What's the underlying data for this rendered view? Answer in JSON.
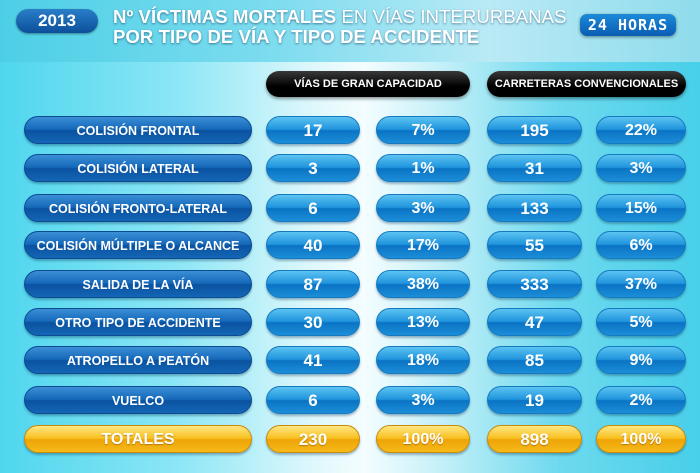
{
  "header": {
    "year": "2013",
    "title_bold_1": "Nº VÍCTIMAS MORTALES",
    "title_light": " EN VÍAS INTERURBANAS",
    "title_line2": "POR TIPO DE VÍA Y TIPO DE ACCIDENTE",
    "badge": "24 HORAS"
  },
  "colors": {
    "row_pill": "#1f93dc",
    "label_pill": "#1567b8",
    "total_pill": "#f7bf1e",
    "column_header": "#000000"
  },
  "chart_data": {
    "type": "table",
    "column_groups": [
      "VÍAS DE GRAN CAPACIDAD",
      "CARRETERAS CONVENCIONALES"
    ],
    "rows": [
      {
        "label": "COLISIÓN FRONTAL",
        "gc_num": "17",
        "gc_pct": "7%",
        "cc_num": "195",
        "cc_pct": "22%"
      },
      {
        "label": "COLISIÓN  LATERAL",
        "gc_num": "3",
        "gc_pct": "1%",
        "cc_num": "31",
        "cc_pct": "3%"
      },
      {
        "label": "COLISIÓN FRONTO-LATERAL",
        "gc_num": "6",
        "gc_pct": "3%",
        "cc_num": "133",
        "cc_pct": "15%"
      },
      {
        "label": "COLISIÓN MÚLTIPLE O ALCANCE",
        "gc_num": "40",
        "gc_pct": "17%",
        "cc_num": "55",
        "cc_pct": "6%"
      },
      {
        "label": "SALIDA DE LA VÍA",
        "gc_num": "87",
        "gc_pct": "38%",
        "cc_num": "333",
        "cc_pct": "37%"
      },
      {
        "label": "OTRO TIPO DE ACCIDENTE",
        "gc_num": "30",
        "gc_pct": "13%",
        "cc_num": "47",
        "cc_pct": "5%"
      },
      {
        "label": "ATROPELLO A PEATÓN",
        "gc_num": "41",
        "gc_pct": "18%",
        "cc_num": "85",
        "cc_pct": "9%"
      },
      {
        "label": "VUELCO",
        "gc_num": "6",
        "gc_pct": "3%",
        "cc_num": "19",
        "cc_pct": "2%"
      }
    ],
    "totals": {
      "label": "TOTALES",
      "gc_num": "230",
      "gc_pct": "100%",
      "cc_num": "898",
      "cc_pct": "100%"
    }
  }
}
